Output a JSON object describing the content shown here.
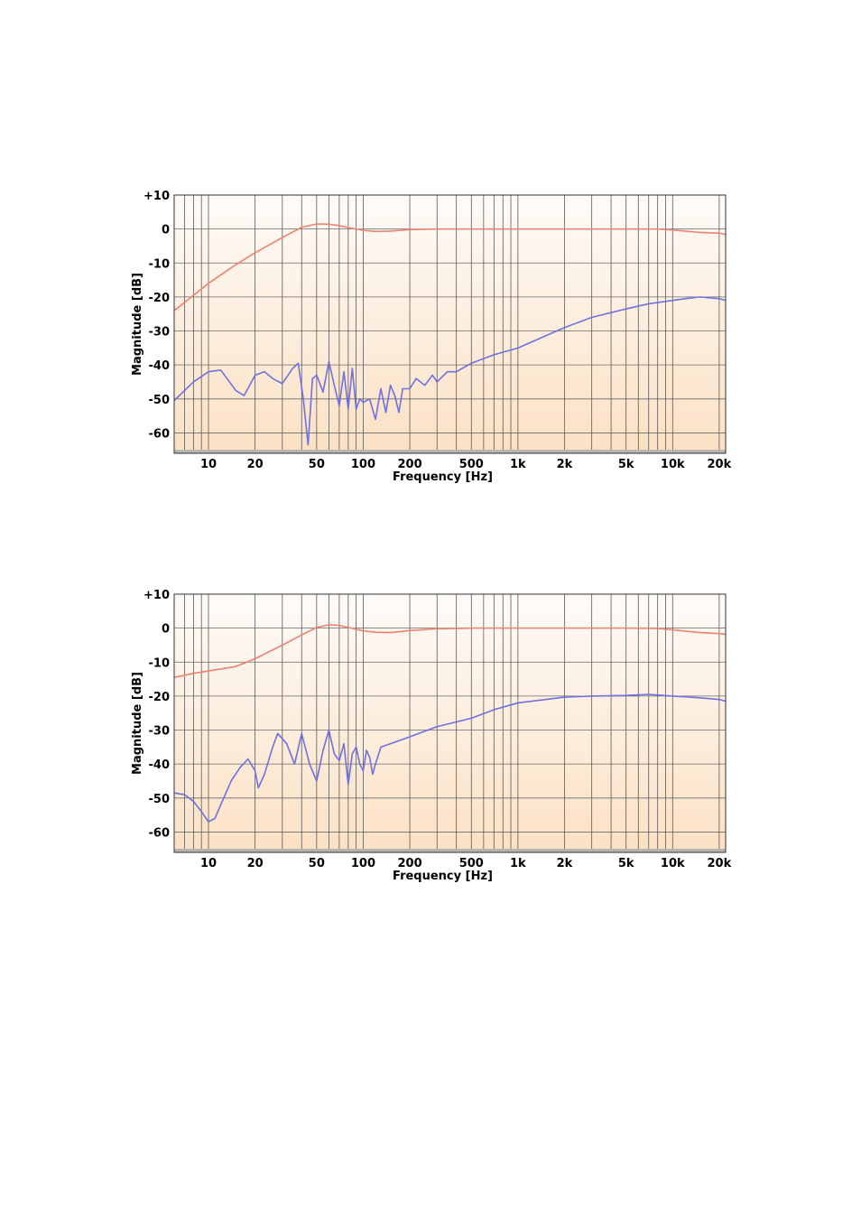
{
  "chart_data": [
    {
      "type": "line",
      "title": "",
      "xlabel": "Frequency [Hz]",
      "ylabel": "Magnitude [dB]",
      "x_scale": "log",
      "xlim": [
        6,
        22000
      ],
      "ylim": [
        -66,
        10
      ],
      "grid": true,
      "legend": "none",
      "x_tick_values": [
        10,
        20,
        50,
        100,
        200,
        500,
        1000,
        2000,
        5000,
        10000,
        20000
      ],
      "x_tick_labels": [
        "10",
        "20",
        "50",
        "100",
        "200",
        "500",
        "1k",
        "2k",
        "5k",
        "10k",
        "20k"
      ],
      "y_tick_values": [
        10,
        0,
        -10,
        -20,
        -30,
        -40,
        -50,
        -60
      ],
      "y_tick_labels": [
        "+10",
        "0",
        "-10",
        "-20",
        "-30",
        "-40",
        "-50",
        "-60"
      ],
      "series": [
        {
          "color": "#f08070",
          "x": [
            6,
            8,
            10,
            15,
            20,
            30,
            40,
            50,
            60,
            70,
            80,
            100,
            120,
            150,
            200,
            300,
            500,
            1000,
            2000,
            5000,
            8000,
            10000,
            15000,
            20000,
            22000
          ],
          "values": [
            -24,
            -19.5,
            -16,
            -10.5,
            -7,
            -2.5,
            0.5,
            1.5,
            1.4,
            1,
            0.4,
            -0.4,
            -0.7,
            -0.6,
            -0.2,
            0,
            0,
            0,
            0,
            0,
            0,
            -0.3,
            -1,
            -1.2,
            -1.6
          ]
        },
        {
          "color": "#7070e0",
          "x": [
            6,
            8,
            10,
            12,
            15,
            17,
            20,
            23,
            26,
            30,
            35,
            38,
            41,
            44,
            47,
            50,
            55,
            60,
            65,
            70,
            75,
            80,
            85,
            90,
            95,
            100,
            110,
            120,
            130,
            140,
            150,
            160,
            170,
            180,
            200,
            220,
            250,
            280,
            300,
            350,
            400,
            500,
            700,
            1000,
            2000,
            3000,
            5000,
            7000,
            10000,
            12000,
            15000,
            20000,
            22000
          ],
          "values": [
            -50.5,
            -45,
            -42,
            -41.5,
            -47.5,
            -49,
            -43,
            -42,
            -44,
            -45.5,
            -41,
            -39.5,
            -50,
            -63.5,
            -44,
            -43,
            -48,
            -39,
            -46,
            -52,
            -42,
            -53,
            -41,
            -53,
            -50,
            -51,
            -50,
            -56,
            -47,
            -54,
            -46,
            -49,
            -54,
            -47,
            -47,
            -44,
            -46,
            -43,
            -45,
            -42,
            -42,
            -39.5,
            -37,
            -35,
            -29,
            -26,
            -23.5,
            -22,
            -21,
            -20.5,
            -20,
            -20.5,
            -21
          ]
        }
      ]
    },
    {
      "type": "line",
      "title": "",
      "xlabel": "Frequency [Hz]",
      "ylabel": "Magnitude [dB]",
      "x_scale": "log",
      "xlim": [
        6,
        22000
      ],
      "ylim": [
        -66,
        10
      ],
      "grid": true,
      "legend": "none",
      "x_tick_values": [
        10,
        20,
        50,
        100,
        200,
        500,
        1000,
        2000,
        5000,
        10000,
        20000
      ],
      "x_tick_labels": [
        "10",
        "20",
        "50",
        "100",
        "200",
        "500",
        "1k",
        "2k",
        "5k",
        "10k",
        "20k"
      ],
      "y_tick_values": [
        10,
        0,
        -10,
        -20,
        -30,
        -40,
        -50,
        -60
      ],
      "y_tick_labels": [
        "+10",
        "0",
        "-10",
        "-20",
        "-30",
        "-40",
        "-50",
        "-60"
      ],
      "series": [
        {
          "color": "#f08070",
          "x": [
            6,
            8,
            10,
            15,
            20,
            30,
            40,
            50,
            60,
            70,
            80,
            100,
            120,
            150,
            200,
            300,
            500,
            1000,
            2000,
            5000,
            8000,
            10000,
            15000,
            20000,
            22000
          ],
          "values": [
            -14.5,
            -13.3,
            -12.6,
            -11.3,
            -9,
            -5,
            -2,
            0.2,
            1,
            0.8,
            0.2,
            -0.8,
            -1.2,
            -1.3,
            -0.7,
            -0.2,
            0,
            0,
            0,
            0,
            -0.1,
            -0.5,
            -1.3,
            -1.6,
            -1.8
          ]
        },
        {
          "color": "#7070e0",
          "x": [
            6,
            7,
            8,
            9,
            10,
            11,
            12,
            14,
            16,
            18,
            20,
            21,
            23,
            26,
            28,
            32,
            36,
            40,
            45,
            50,
            55,
            60,
            65,
            70,
            75,
            80,
            85,
            90,
            95,
            100,
            105,
            110,
            115,
            120,
            130,
            150,
            200,
            300,
            500,
            700,
            1000,
            2000,
            3000,
            5000,
            7000,
            10000,
            15000,
            20000,
            22000
          ],
          "values": [
            -48.5,
            -49,
            -51,
            -54,
            -57,
            -56,
            -52,
            -45,
            -41,
            -38.5,
            -42,
            -47,
            -43,
            -35,
            -31,
            -34,
            -40,
            -31,
            -40,
            -45,
            -36,
            -30,
            -37,
            -39,
            -34,
            -46,
            -37,
            -35,
            -40,
            -42,
            -36,
            -38,
            -43,
            -40,
            -35,
            -34,
            -32,
            -29,
            -26.5,
            -24,
            -22,
            -20.3,
            -20,
            -19.8,
            -19.5,
            -20,
            -20.5,
            -21,
            -21.5
          ]
        }
      ]
    }
  ]
}
